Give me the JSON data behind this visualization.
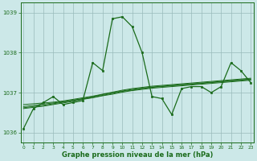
{
  "x": [
    0,
    1,
    2,
    3,
    4,
    5,
    6,
    7,
    8,
    9,
    10,
    11,
    12,
    13,
    14,
    15,
    16,
    17,
    18,
    19,
    20,
    21,
    22,
    23
  ],
  "y_main": [
    1036.1,
    1036.6,
    1036.75,
    1036.9,
    1036.7,
    1036.75,
    1036.8,
    1037.75,
    1037.55,
    1038.85,
    1038.9,
    1038.65,
    1038.0,
    1036.9,
    1036.85,
    1036.45,
    1037.1,
    1037.15,
    1037.15,
    1037.0,
    1037.15,
    1037.75,
    1037.55,
    1037.25
  ],
  "y_trend1": [
    1036.7,
    1036.72,
    1036.74,
    1036.76,
    1036.79,
    1036.83,
    1036.87,
    1036.91,
    1036.96,
    1037.01,
    1037.06,
    1037.1,
    1037.13,
    1037.16,
    1037.18,
    1037.2,
    1037.22,
    1037.24,
    1037.26,
    1037.28,
    1037.3,
    1037.32,
    1037.34,
    1037.36
  ],
  "y_trend2": [
    1036.65,
    1036.68,
    1036.71,
    1036.74,
    1036.77,
    1036.81,
    1036.85,
    1036.9,
    1036.95,
    1037.0,
    1037.04,
    1037.08,
    1037.11,
    1037.14,
    1037.16,
    1037.18,
    1037.2,
    1037.22,
    1037.24,
    1037.26,
    1037.28,
    1037.3,
    1037.32,
    1037.34
  ],
  "y_trend3": [
    1036.62,
    1036.65,
    1036.68,
    1036.72,
    1036.76,
    1036.8,
    1036.84,
    1036.88,
    1036.93,
    1036.98,
    1037.03,
    1037.06,
    1037.1,
    1037.13,
    1037.15,
    1037.17,
    1037.19,
    1037.21,
    1037.23,
    1037.25,
    1037.27,
    1037.29,
    1037.31,
    1037.33
  ],
  "y_trend4": [
    1036.6,
    1036.63,
    1036.66,
    1036.7,
    1036.74,
    1036.78,
    1036.83,
    1036.87,
    1036.92,
    1036.96,
    1037.01,
    1037.05,
    1037.08,
    1037.11,
    1037.13,
    1037.15,
    1037.17,
    1037.19,
    1037.21,
    1037.23,
    1037.25,
    1037.27,
    1037.29,
    1037.31
  ],
  "line_color": "#1a6b1a",
  "bg_color": "#cce8e8",
  "grid_color": "#99bbbb",
  "text_color": "#1a6b1a",
  "xlabel": "Graphe pression niveau de la mer (hPa)",
  "ylim": [
    1035.75,
    1039.25
  ],
  "yticks": [
    1036,
    1037,
    1038,
    1039
  ],
  "xticks": [
    0,
    1,
    2,
    3,
    4,
    5,
    6,
    7,
    8,
    9,
    10,
    11,
    12,
    13,
    14,
    15,
    16,
    17,
    18,
    19,
    20,
    21,
    22,
    23
  ]
}
